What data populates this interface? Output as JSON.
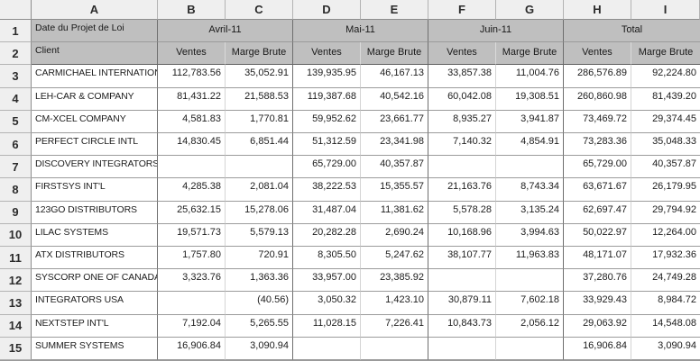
{
  "app": {
    "kind": "spreadsheet"
  },
  "colors": {
    "header_fill": "#bfbfbf",
    "chrome_bg": "#efefef",
    "grid_dark": "#6f6f6f",
    "grid_mid": "#9b9b9b",
    "grid_light": "#d4d4d4",
    "cell_bg": "#ffffff",
    "text": "#1c1c1c"
  },
  "chrome": {
    "column_headers": [
      "A",
      "B",
      "C",
      "D",
      "E",
      "F",
      "G",
      "H",
      "I"
    ],
    "row_headers": [
      "1",
      "2",
      "3",
      "4",
      "5",
      "6",
      "7",
      "8",
      "9",
      "10",
      "11",
      "12",
      "13",
      "14",
      "15"
    ]
  },
  "table": {
    "title_cell": "Date du Projet de Loi",
    "client_header": "Client",
    "month_groups": [
      "Avril-11",
      "Mai-11",
      "Juin-11",
      "Total"
    ],
    "subheaders": [
      "Ventes",
      "Marge Brute",
      "Ventes",
      "Marge Brute",
      "Ventes",
      "Marge Brute",
      "Ventes",
      "Marge Brute"
    ],
    "rows": [
      {
        "client": "CARMICHAEL INTERNATIONAL",
        "values": [
          "112,783.56",
          "35,052.91",
          "139,935.95",
          "46,167.13",
          "33,857.38",
          "11,004.76",
          "286,576.89",
          "92,224.80"
        ]
      },
      {
        "client": "LEH-CAR & COMPANY",
        "values": [
          "81,431.22",
          "21,588.53",
          "119,387.68",
          "40,542.16",
          "60,042.08",
          "19,308.51",
          "260,860.98",
          "81,439.20"
        ]
      },
      {
        "client": "CM-XCEL COMPANY",
        "values": [
          "4,581.83",
          "1,770.81",
          "59,952.62",
          "23,661.77",
          "8,935.27",
          "3,941.87",
          "73,469.72",
          "29,374.45"
        ]
      },
      {
        "client": "PERFECT CIRCLE INTL",
        "values": [
          "14,830.45",
          "6,851.44",
          "51,312.59",
          "23,341.98",
          "7,140.32",
          "4,854.91",
          "73,283.36",
          "35,048.33"
        ]
      },
      {
        "client": "DISCOVERY INTEGRATORS",
        "values": [
          "",
          "",
          "65,729.00",
          "40,357.87",
          "",
          "",
          "65,729.00",
          "40,357.87"
        ]
      },
      {
        "client": "FIRSTSYS INT'L",
        "values": [
          "4,285.38",
          "2,081.04",
          "38,222.53",
          "15,355.57",
          "21,163.76",
          "8,743.34",
          "63,671.67",
          "26,179.95"
        ]
      },
      {
        "client": "123GO DISTRIBUTORS",
        "values": [
          "25,632.15",
          "15,278.06",
          "31,487.04",
          "11,381.62",
          "5,578.28",
          "3,135.24",
          "62,697.47",
          "29,794.92"
        ]
      },
      {
        "client": "LILAC SYSTEMS",
        "values": [
          "19,571.73",
          "5,579.13",
          "20,282.28",
          "2,690.24",
          "10,168.96",
          "3,994.63",
          "50,022.97",
          "12,264.00"
        ]
      },
      {
        "client": "ATX DISTRIBUTORS",
        "values": [
          "1,757.80",
          "720.91",
          "8,305.50",
          "5,247.62",
          "38,107.77",
          "11,963.83",
          "48,171.07",
          "17,932.36"
        ]
      },
      {
        "client": "SYSCORP ONE OF CANADA",
        "values": [
          "3,323.76",
          "1,363.36",
          "33,957.00",
          "23,385.92",
          "",
          "",
          "37,280.76",
          "24,749.28"
        ]
      },
      {
        "client": "INTEGRATORS USA",
        "values": [
          "",
          "(40.56)",
          "3,050.32",
          "1,423.10",
          "30,879.11",
          "7,602.18",
          "33,929.43",
          "8,984.72"
        ]
      },
      {
        "client": "NEXTSTEP INT'L",
        "values": [
          "7,192.04",
          "5,265.55",
          "11,028.15",
          "7,226.41",
          "10,843.73",
          "2,056.12",
          "29,063.92",
          "14,548.08"
        ]
      },
      {
        "client": "SUMMER SYSTEMS",
        "values": [
          "16,906.84",
          "3,090.94",
          "",
          "",
          "",
          "",
          "16,906.84",
          "3,090.94"
        ]
      }
    ]
  }
}
